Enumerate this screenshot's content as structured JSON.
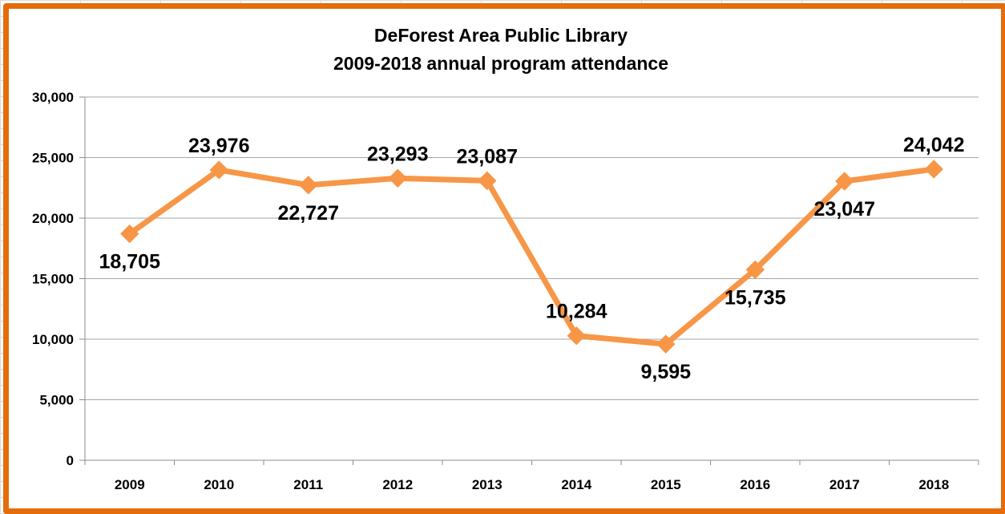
{
  "chart_data": {
    "type": "line",
    "title": "DeForest Area Public Library",
    "subtitle": "2009-2018 annual program attendance",
    "xlabel": "",
    "ylabel": "",
    "categories": [
      "2009",
      "2010",
      "2011",
      "2012",
      "2013",
      "2014",
      "2015",
      "2016",
      "2017",
      "2018"
    ],
    "series": [
      {
        "values": [
          18705,
          23976,
          22727,
          23293,
          23087,
          10284,
          9595,
          15735,
          23047,
          24042
        ],
        "data_labels": [
          "18,705",
          "23,976",
          "22,727",
          "23,293",
          "23,087",
          "10,284",
          "9,595",
          "15,735",
          "23,047",
          "24,042"
        ],
        "color": "#f79646"
      }
    ],
    "ylim": [
      0,
      30000
    ],
    "yticks": [
      0,
      5000,
      10000,
      15000,
      20000,
      25000,
      30000
    ],
    "ytick_labels": [
      "0",
      "5,000",
      "10,000",
      "15,000",
      "20,000",
      "25,000",
      "30,000"
    ],
    "grid": true,
    "legend": "none",
    "marker": "diamond",
    "frame_color": "#e46c0a"
  }
}
